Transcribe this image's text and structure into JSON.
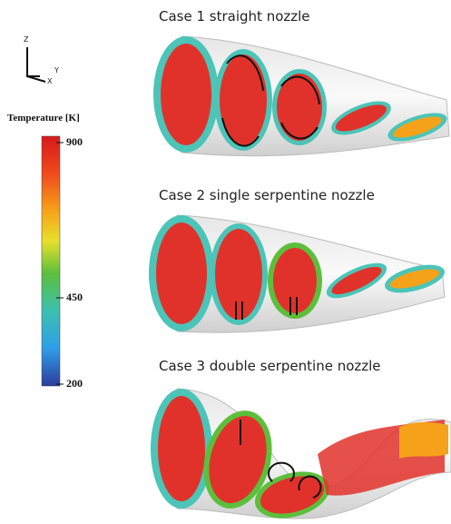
{
  "axes": {
    "z": "Z",
    "y": "Y",
    "x": "X"
  },
  "colorbar": {
    "title": "Temperature [K]",
    "ticks": [
      900,
      450,
      200
    ]
  },
  "cases": [
    {
      "title": "Case 1 straight nozzle"
    },
    {
      "title": "Case 2 single serpentine nozzle"
    },
    {
      "title": "Case 3 double serpentine nozzle"
    }
  ]
}
